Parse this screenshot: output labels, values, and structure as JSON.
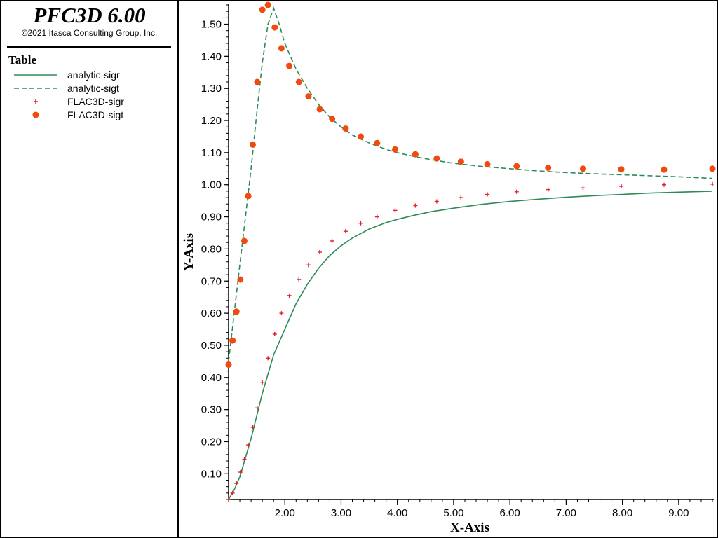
{
  "app": {
    "title": "PFC3D 6.00",
    "copyright": "©2021 Itasca Consulting Group, Inc."
  },
  "legend": {
    "heading": "Table",
    "items": [
      {
        "label": "analytic-sigr",
        "style": "solid-line",
        "color": "#2e8b57"
      },
      {
        "label": "analytic-sigt",
        "style": "dashed-line",
        "color": "#2e8b57"
      },
      {
        "label": "FLAC3D-sigr",
        "style": "plus-marker",
        "color": "#e0202a"
      },
      {
        "label": "FLAC3D-sigt",
        "style": "circle-marker",
        "color": "#f04a10"
      }
    ]
  },
  "chart_data": {
    "type": "line",
    "xlabel": "X-Axis",
    "ylabel": "Y-Axis",
    "xlim": [
      1.0,
      9.6
    ],
    "ylim": [
      0.02,
      1.56
    ],
    "xticks": [
      2.0,
      3.0,
      4.0,
      5.0,
      6.0,
      7.0,
      8.0,
      9.0
    ],
    "xtick_labels": [
      "2.00",
      "3.00",
      "4.00",
      "5.00",
      "6.00",
      "7.00",
      "8.00",
      "9.00"
    ],
    "yticks": [
      0.1,
      0.2,
      0.3,
      0.4,
      0.5,
      0.6,
      0.7,
      0.8,
      0.9,
      1.0,
      1.1,
      1.2,
      1.3,
      1.4,
      1.5
    ],
    "ytick_labels": [
      "0.10",
      "0.20",
      "0.30",
      "0.40",
      "0.50",
      "0.60",
      "0.70",
      "0.80",
      "0.90",
      "1.00",
      "1.10",
      "1.20",
      "1.30",
      "1.40",
      "1.50"
    ],
    "grid": false,
    "series": [
      {
        "name": "analytic-sigr",
        "type": "line",
        "style": "solid",
        "color": "#2e8b57",
        "x": [
          1.0,
          1.1,
          1.2,
          1.3,
          1.4,
          1.5,
          1.6,
          1.7,
          1.8,
          1.9,
          2.0,
          2.2,
          2.4,
          2.6,
          2.8,
          3.0,
          3.2,
          3.5,
          3.8,
          4.0,
          4.3,
          4.6,
          5.0,
          5.5,
          6.0,
          6.5,
          7.0,
          7.5,
          8.0,
          8.5,
          9.0,
          9.6
        ],
        "y": [
          0.02,
          0.05,
          0.09,
          0.15,
          0.21,
          0.28,
          0.35,
          0.41,
          0.47,
          0.51,
          0.55,
          0.63,
          0.69,
          0.74,
          0.78,
          0.81,
          0.834,
          0.862,
          0.882,
          0.892,
          0.905,
          0.916,
          0.927,
          0.939,
          0.948,
          0.955,
          0.961,
          0.966,
          0.97,
          0.974,
          0.977,
          0.98
        ]
      },
      {
        "name": "analytic-sigt",
        "type": "line",
        "style": "dashed",
        "color": "#2e8b57",
        "x": [
          1.0,
          1.1,
          1.2,
          1.3,
          1.4,
          1.5,
          1.6,
          1.7,
          1.8,
          1.9,
          2.0,
          2.2,
          2.4,
          2.6,
          2.8,
          3.0,
          3.2,
          3.5,
          3.8,
          4.0,
          4.3,
          4.6,
          5.0,
          5.5,
          6.0,
          6.5,
          7.0,
          7.5,
          8.0,
          8.5,
          9.0,
          9.6
        ],
        "y": [
          0.45,
          0.6,
          0.75,
          0.9,
          1.05,
          1.22,
          1.38,
          1.5,
          1.55,
          1.5,
          1.44,
          1.36,
          1.3,
          1.25,
          1.21,
          1.18,
          1.155,
          1.13,
          1.11,
          1.1,
          1.088,
          1.078,
          1.067,
          1.057,
          1.05,
          1.043,
          1.038,
          1.034,
          1.031,
          1.028,
          1.025,
          1.02
        ]
      },
      {
        "name": "FLAC3D-sigr",
        "type": "scatter",
        "marker": "plus",
        "color": "#e0202a",
        "x": [
          1.0,
          1.07,
          1.14,
          1.21,
          1.28,
          1.35,
          1.43,
          1.51,
          1.6,
          1.7,
          1.82,
          1.94,
          2.08,
          2.25,
          2.42,
          2.62,
          2.84,
          3.08,
          3.35,
          3.64,
          3.96,
          4.32,
          4.7,
          5.13,
          5.6,
          6.12,
          6.68,
          7.3,
          7.98,
          8.74,
          9.6
        ],
        "y": [
          0.02,
          0.04,
          0.07,
          0.105,
          0.145,
          0.19,
          0.245,
          0.305,
          0.385,
          0.46,
          0.535,
          0.6,
          0.655,
          0.705,
          0.75,
          0.79,
          0.825,
          0.855,
          0.88,
          0.9,
          0.92,
          0.935,
          0.948,
          0.96,
          0.97,
          0.978,
          0.985,
          0.99,
          0.995,
          1.0,
          1.002
        ]
      },
      {
        "name": "FLAC3D-sigt",
        "type": "scatter",
        "marker": "circle",
        "color": "#f04a10",
        "x": [
          1.0,
          1.07,
          1.14,
          1.21,
          1.28,
          1.35,
          1.43,
          1.51,
          1.6,
          1.7,
          1.82,
          1.94,
          2.08,
          2.25,
          2.42,
          2.62,
          2.84,
          3.08,
          3.35,
          3.64,
          3.96,
          4.32,
          4.7,
          5.13,
          5.6,
          6.12,
          6.68,
          7.3,
          7.98,
          8.74,
          9.6
        ],
        "y": [
          0.44,
          0.515,
          0.605,
          0.705,
          0.825,
          0.965,
          1.125,
          1.32,
          1.545,
          1.56,
          1.49,
          1.425,
          1.37,
          1.32,
          1.275,
          1.235,
          1.205,
          1.175,
          1.15,
          1.13,
          1.11,
          1.095,
          1.082,
          1.072,
          1.064,
          1.058,
          1.053,
          1.05,
          1.048,
          1.047,
          1.05
        ]
      }
    ]
  }
}
